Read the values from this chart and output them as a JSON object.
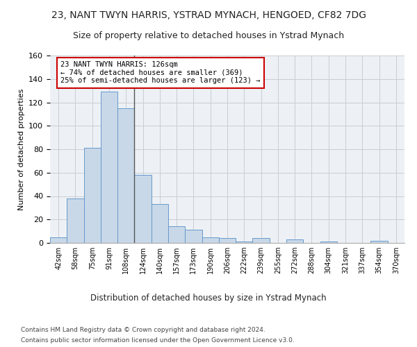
{
  "title": "23, NANT TWYN HARRIS, YSTRAD MYNACH, HENGOED, CF82 7DG",
  "subtitle": "Size of property relative to detached houses in Ystrad Mynach",
  "xlabel": "Distribution of detached houses by size in Ystrad Mynach",
  "ylabel": "Number of detached properties",
  "footer1": "Contains HM Land Registry data © Crown copyright and database right 2024.",
  "footer2": "Contains public sector information licensed under the Open Government Licence v3.0.",
  "bar_labels": [
    "42sqm",
    "58sqm",
    "75sqm",
    "91sqm",
    "108sqm",
    "124sqm",
    "140sqm",
    "157sqm",
    "173sqm",
    "190sqm",
    "206sqm",
    "222sqm",
    "239sqm",
    "255sqm",
    "272sqm",
    "288sqm",
    "304sqm",
    "321sqm",
    "337sqm",
    "354sqm",
    "370sqm"
  ],
  "bar_heights": [
    5,
    38,
    81,
    129,
    115,
    58,
    33,
    14,
    11,
    5,
    4,
    1,
    4,
    0,
    3,
    0,
    1,
    0,
    0,
    2,
    0
  ],
  "bar_color": "#c8d8e8",
  "bar_edge_color": "#6699cc",
  "annotation_text": "23 NANT TWYN HARRIS: 126sqm\n← 74% of detached houses are smaller (369)\n25% of semi-detached houses are larger (123) →",
  "annotation_box_color": "#ffffff",
  "annotation_box_edge": "#cc0000",
  "vline_x_index": 4.5,
  "vline_color": "#555555",
  "ylim": [
    0,
    160
  ],
  "yticks": [
    0,
    20,
    40,
    60,
    80,
    100,
    120,
    140,
    160
  ],
  "grid_color": "#c8cdd4",
  "bg_color": "#edf1f5",
  "title_fontsize": 10,
  "subtitle_fontsize": 9,
  "footer_fontsize": 6.5
}
